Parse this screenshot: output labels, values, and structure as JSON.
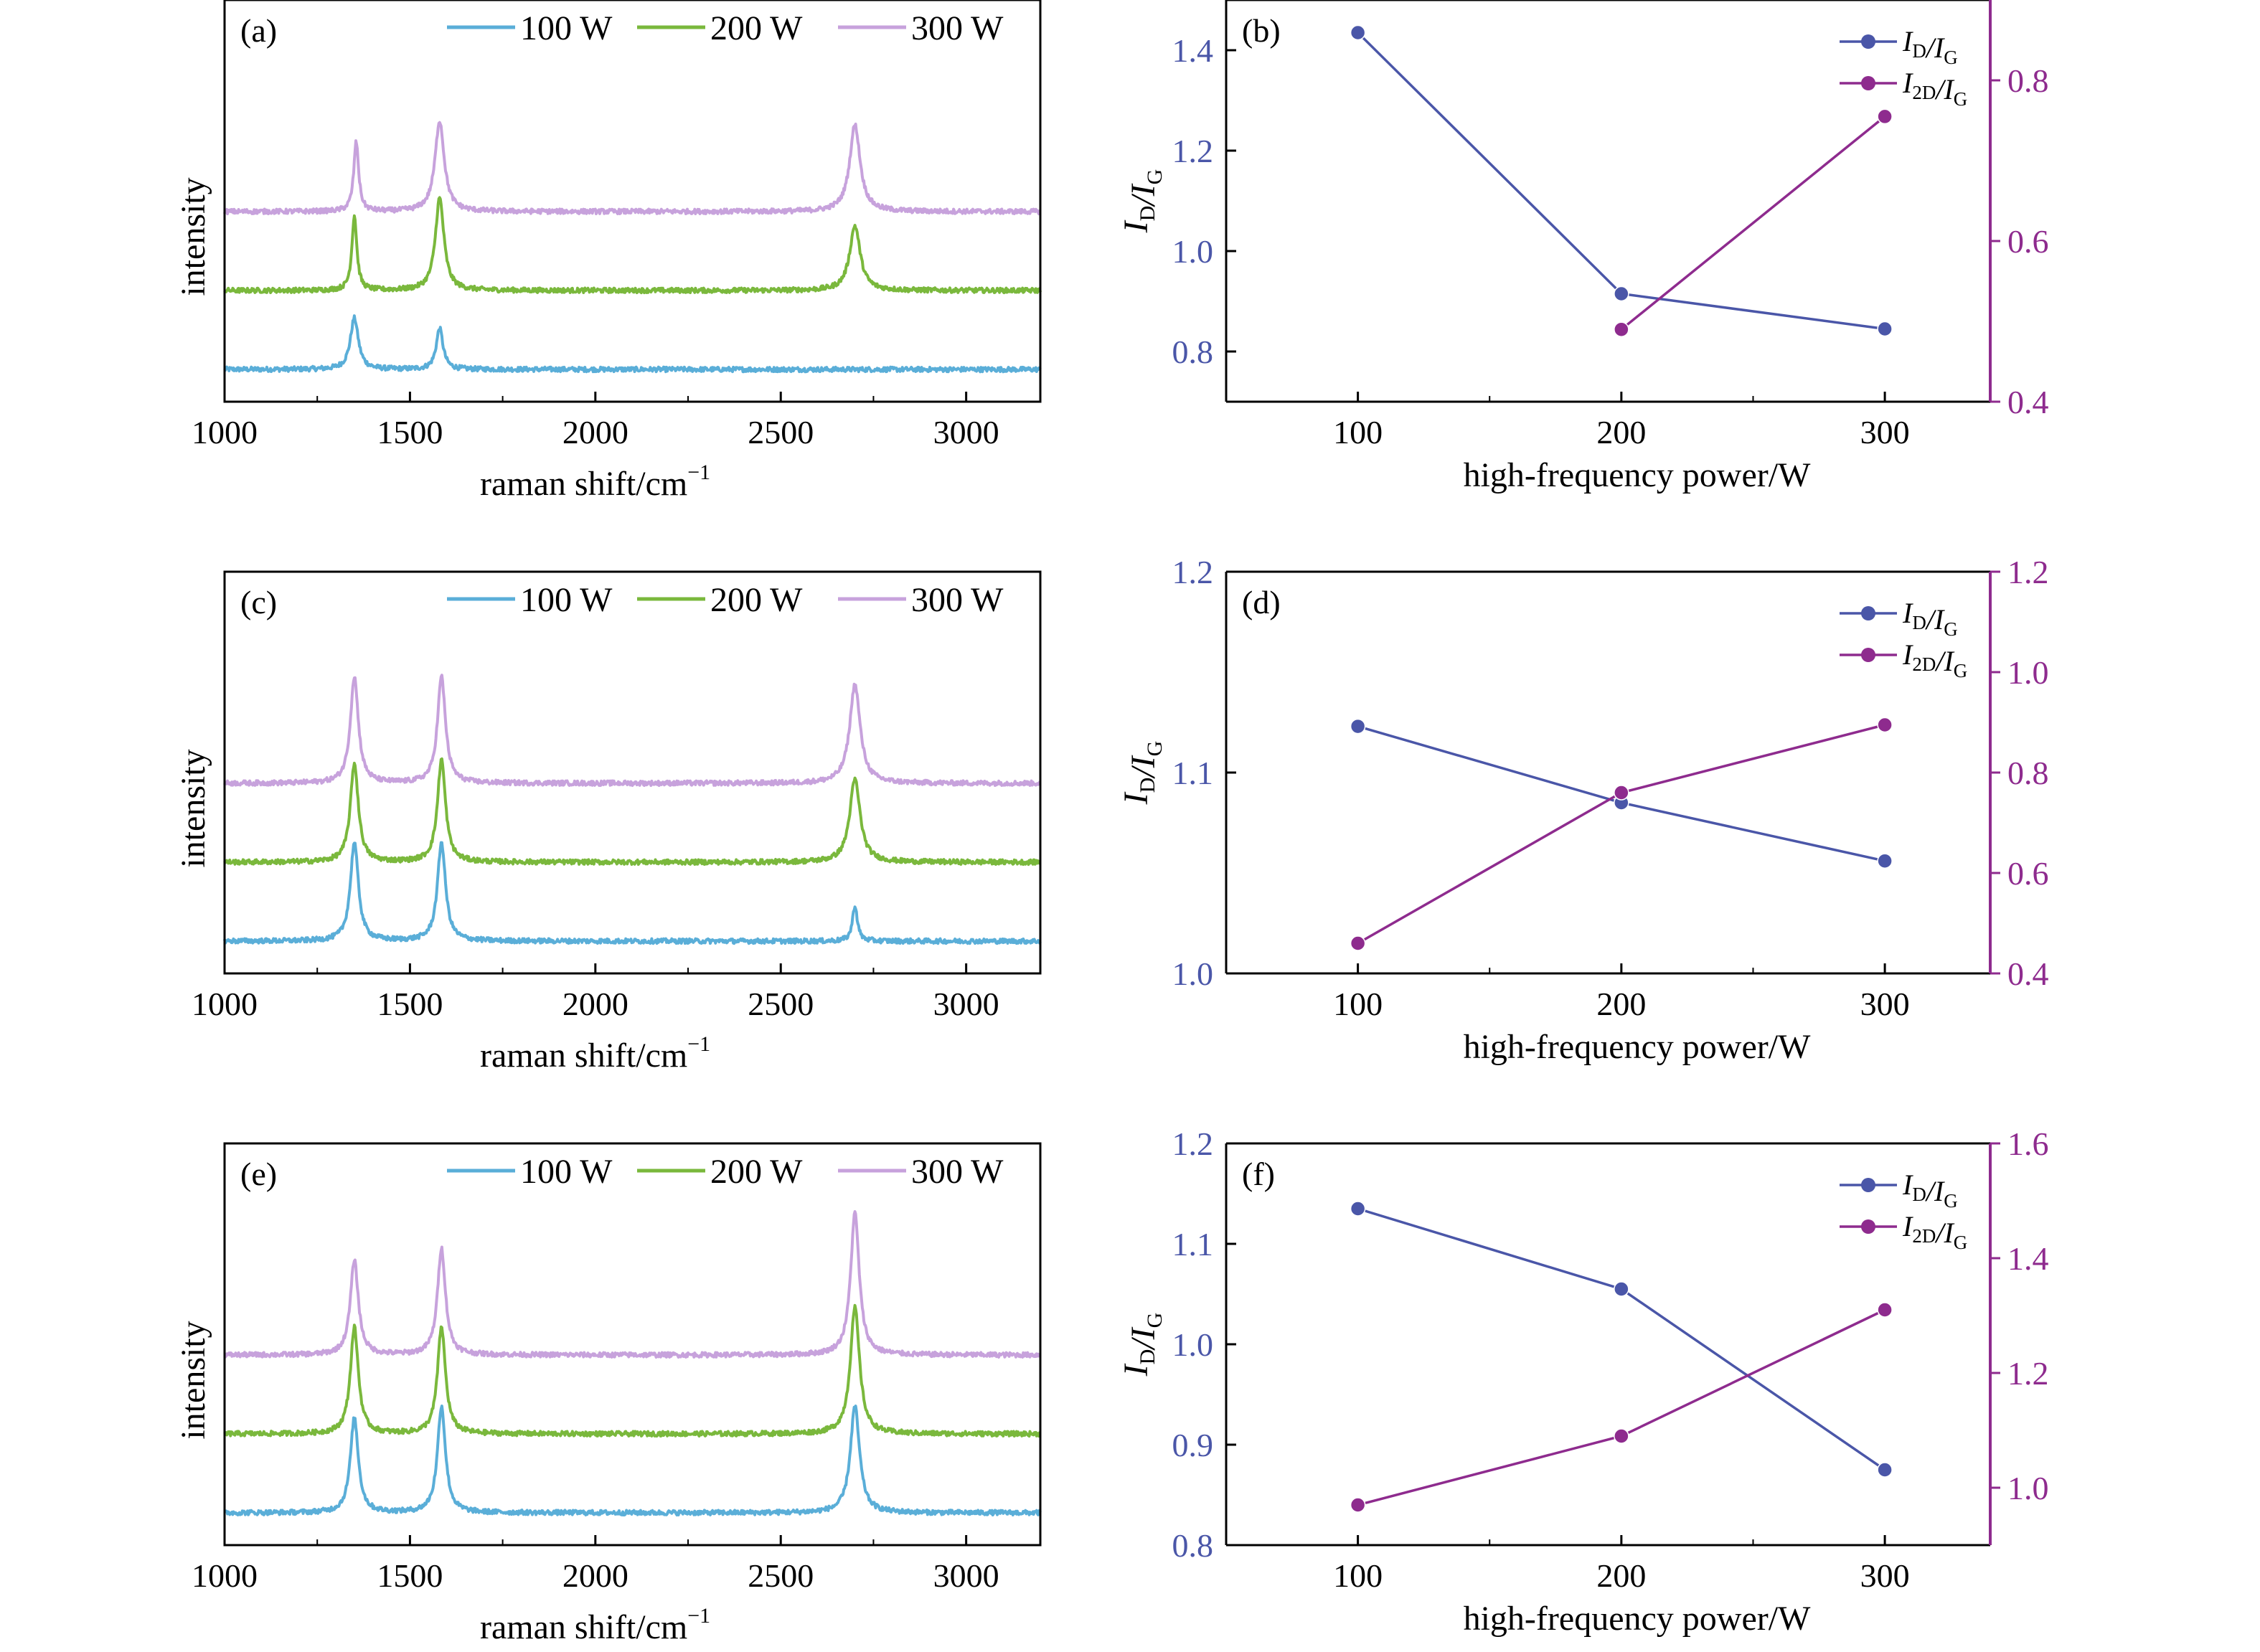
{
  "colors": {
    "s100": "#5aaed8",
    "s200": "#7ab83c",
    "s300": "#c7a2dc",
    "id_ig": "#4a56a8",
    "i2d_ig": "#8e2b8e",
    "left_axis_ticks": "#4a56a8",
    "right_axis": "#8e2b8e"
  },
  "chart_data": [
    {
      "panel": "(a)",
      "type": "line",
      "xlabel": "raman shift/cm",
      "xlabel_superscript": "−1",
      "ylabel": "intensity",
      "xlim": [
        1000,
        3200
      ],
      "xticks": [
        1000,
        1500,
        2000,
        2500,
        3000
      ],
      "legend": [
        "100 W",
        "200 W",
        "300 W"
      ],
      "legend_position": "top",
      "series": [
        {
          "name": "100 W",
          "offset": 0.0,
          "peaks": [
            {
              "x": 1350,
              "h": 0.65,
              "w": 13
            },
            {
              "x": 1580,
              "h": 0.52,
              "w": 11
            }
          ]
        },
        {
          "name": "200 W",
          "offset": 1.0,
          "peaks": [
            {
              "x": 1350,
              "h": 0.95,
              "w": 8
            },
            {
              "x": 1580,
              "h": 1.17,
              "w": 14
            },
            {
              "x": 2700,
              "h": 0.82,
              "w": 17
            }
          ]
        },
        {
          "name": "300 W",
          "offset": 2.0,
          "peaks": [
            {
              "x": 1355,
              "h": 0.88,
              "w": 8
            },
            {
              "x": 1580,
              "h": 1.15,
              "w": 15
            },
            {
              "x": 2700,
              "h": 1.1,
              "w": 17
            }
          ]
        }
      ]
    },
    {
      "panel": "(b)",
      "type": "line",
      "xlabel": "high-frequency power/W",
      "x": [
        100,
        200,
        300
      ],
      "xlim": [
        50,
        340
      ],
      "xticks": [
        100,
        200,
        300
      ],
      "ylabel_left": "I_D/I_G",
      "ylim_left": [
        0.7,
        1.5
      ],
      "yticks_left": [
        "0.8",
        "1.0",
        "1.2",
        "1.4"
      ],
      "ylim_right": [
        0.4,
        0.9
      ],
      "yticks_right": [
        "0.4",
        "0.6",
        "0.8"
      ],
      "legend_position": "top-right",
      "series": [
        {
          "name": "I_D/I_G",
          "axis": "left",
          "x": [
            100,
            200,
            300
          ],
          "values": [
            1.435,
            0.915,
            0.845
          ]
        },
        {
          "name": "I_2D/I_G",
          "axis": "right",
          "x": [
            200,
            300
          ],
          "values": [
            0.49,
            0.755
          ]
        }
      ]
    },
    {
      "panel": "(c)",
      "type": "line",
      "xlabel": "raman shift/cm",
      "xlabel_superscript": "−1",
      "ylabel": "intensity",
      "xlim": [
        1000,
        3200
      ],
      "xticks": [
        1000,
        1500,
        2000,
        2500,
        3000
      ],
      "legend": [
        "100 W",
        "200 W",
        "300 W"
      ],
      "legend_position": "top",
      "series": [
        {
          "name": "100 W",
          "offset": 0.0,
          "peaks": [
            {
              "x": 1350,
              "h": 1.25,
              "w": 13
            },
            {
              "x": 1585,
              "h": 1.25,
              "w": 13
            },
            {
              "x": 2700,
              "h": 0.45,
              "w": 8
            }
          ]
        },
        {
          "name": "200 W",
          "offset": 1.0,
          "peaks": [
            {
              "x": 1350,
              "h": 1.25,
              "w": 13
            },
            {
              "x": 1585,
              "h": 1.3,
              "w": 13
            },
            {
              "x": 2700,
              "h": 1.05,
              "w": 17
            }
          ]
        },
        {
          "name": "300 W",
          "offset": 2.0,
          "peaks": [
            {
              "x": 1350,
              "h": 1.35,
              "w": 13
            },
            {
              "x": 1585,
              "h": 1.35,
              "w": 13
            },
            {
              "x": 2700,
              "h": 1.25,
              "w": 17
            }
          ]
        }
      ]
    },
    {
      "panel": "(d)",
      "type": "line",
      "xlabel": "high-frequency power/W",
      "x": [
        100,
        200,
        300
      ],
      "xlim": [
        50,
        340
      ],
      "xticks": [
        100,
        200,
        300
      ],
      "ylabel_left": "I_D/I_G",
      "ylim_left": [
        1.0,
        1.2
      ],
      "yticks_left": [
        "1.0",
        "1.1",
        "1.2"
      ],
      "ylim_right": [
        0.4,
        1.2
      ],
      "yticks_right": [
        "0.4",
        "0.6",
        "0.8",
        "1.0",
        "1.2"
      ],
      "legend_position": "top-right",
      "series": [
        {
          "name": "I_D/I_G",
          "axis": "left",
          "x": [
            100,
            200,
            300
          ],
          "values": [
            1.123,
            1.085,
            1.056
          ]
        },
        {
          "name": "I_2D/I_G",
          "axis": "right",
          "x": [
            100,
            200,
            300
          ],
          "values": [
            0.46,
            0.76,
            0.895
          ]
        }
      ]
    },
    {
      "panel": "(e)",
      "type": "line",
      "xlabel": "raman shift/cm",
      "xlabel_superscript": "−1",
      "ylabel": "intensity",
      "xlim": [
        1000,
        3200
      ],
      "xticks": [
        1000,
        1500,
        2000,
        2500,
        3000
      ],
      "legend": [
        "100 W",
        "200 W",
        "300 W"
      ],
      "legend_position": "top",
      "series": [
        {
          "name": "100 W",
          "offset": 0.0,
          "peaks": [
            {
              "x": 1350,
              "h": 1.2,
              "w": 13
            },
            {
              "x": 1585,
              "h": 1.35,
              "w": 13
            },
            {
              "x": 2700,
              "h": 1.35,
              "w": 15
            }
          ]
        },
        {
          "name": "200 W",
          "offset": 1.0,
          "peaks": [
            {
              "x": 1350,
              "h": 1.35,
              "w": 13
            },
            {
              "x": 1585,
              "h": 1.35,
              "w": 13
            },
            {
              "x": 2700,
              "h": 1.6,
              "w": 15
            }
          ]
        },
        {
          "name": "300 W",
          "offset": 2.0,
          "peaks": [
            {
              "x": 1350,
              "h": 1.2,
              "w": 13
            },
            {
              "x": 1585,
              "h": 1.35,
              "w": 13
            },
            {
              "x": 2700,
              "h": 1.8,
              "w": 14
            }
          ]
        }
      ]
    },
    {
      "panel": "(f)",
      "type": "line",
      "xlabel": "high-frequency power/W",
      "x": [
        100,
        200,
        300
      ],
      "xlim": [
        50,
        340
      ],
      "xticks": [
        100,
        200,
        300
      ],
      "ylabel_left": "I_D/I_G",
      "ylim_left": [
        0.8,
        1.2
      ],
      "yticks_left": [
        "0.8",
        "0.9",
        "1.0",
        "1.1",
        "1.2"
      ],
      "ylim_right": [
        0.9,
        1.6
      ],
      "yticks_right": [
        "1.0",
        "1.2",
        "1.4",
        "1.6"
      ],
      "legend_position": "top-right",
      "series": [
        {
          "name": "I_D/I_G",
          "axis": "left",
          "x": [
            100,
            200,
            300
          ],
          "values": [
            1.135,
            1.055,
            0.875
          ]
        },
        {
          "name": "I_2D/I_G",
          "axis": "right",
          "x": [
            100,
            200,
            300
          ],
          "values": [
            0.97,
            1.09,
            1.31
          ]
        }
      ]
    }
  ]
}
